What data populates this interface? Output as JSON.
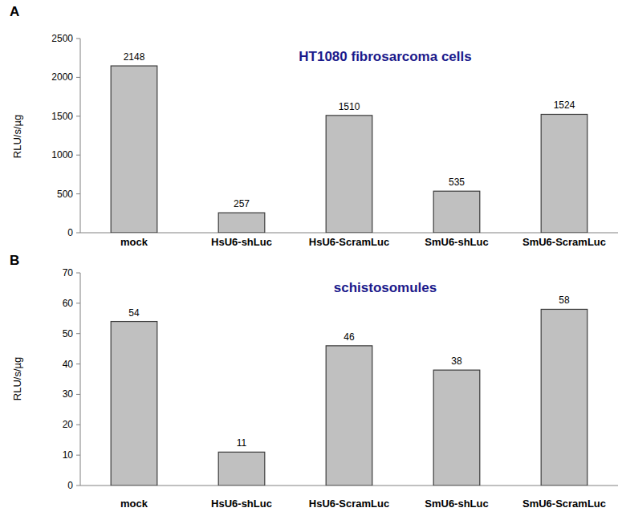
{
  "chart_data": [
    {
      "type": "bar",
      "title": "HT1080 fibrosarcoma cells",
      "y_label": "RLU/s/µg",
      "annotations": [
        "A"
      ],
      "categories": [
        "mock",
        "HsU6-shLuc",
        "HsU6-ScramLuc",
        "SmU6-shLuc",
        "SmU6-ScramLuc"
      ],
      "values": [
        2148,
        257,
        1510,
        535,
        1524
      ],
      "color": "#c0c0c0",
      "ylim": [
        0,
        2500
      ],
      "yticks": [
        0,
        500,
        1000,
        1500,
        2000,
        2500
      ],
      "grid": false,
      "data_labels": true
    },
    {
      "type": "bar",
      "title": "schistosomules",
      "y_label": "RLU/s/µg",
      "annotations": [
        "B"
      ],
      "categories": [
        "mock",
        "HsU6-shLuc",
        "HsU6-ScramLuc",
        "SmU6-shLuc",
        "SmU6-ScramLuc"
      ],
      "values": [
        54,
        11,
        46,
        38,
        58
      ],
      "color": "#c0c0c0",
      "ylim": [
        0,
        70
      ],
      "yticks": [
        0,
        10,
        20,
        30,
        40,
        50,
        60,
        70
      ],
      "grid": false,
      "data_labels": true
    }
  ]
}
